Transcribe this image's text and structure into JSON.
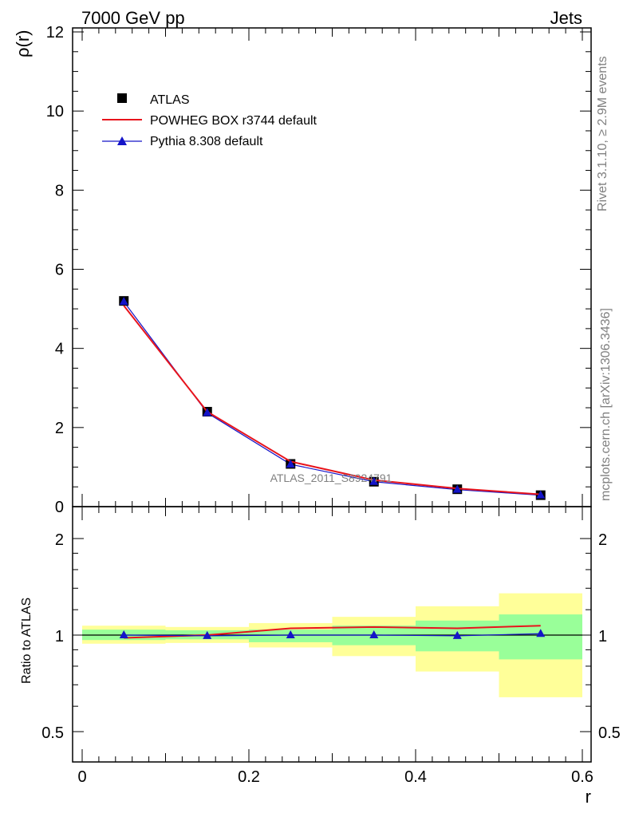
{
  "header": {
    "left": "7000 GeV pp",
    "right": "Jets"
  },
  "side_labels": {
    "rivet": "Rivet 3.1.10, ≥ 2.9M events",
    "mcplots": "mcplots.cern.ch [arXiv:1306.3436]"
  },
  "watermark": "ATLAS_2011_S8924791",
  "colors": {
    "atlas": "#000000",
    "powheg": "#e8141c",
    "pythia": "#1414c8",
    "band_green": "#99ff99",
    "band_yellow": "#ffff99"
  },
  "chart_data": [
    {
      "type": "line",
      "name": "main",
      "ylabel": "ρ(r)",
      "xlim": [
        0,
        0.6
      ],
      "ylim": [
        0,
        12
      ],
      "yticks": [
        "0",
        "2",
        "4",
        "6",
        "8",
        "10",
        "12"
      ],
      "legend": {
        "placement": "top-left",
        "entries": [
          "ATLAS",
          "POWHEG BOX r3744 default",
          "Pythia 8.308 default"
        ]
      },
      "series": [
        {
          "name": "ATLAS",
          "x": [
            0.05,
            0.15,
            0.25,
            0.35,
            0.45,
            0.55
          ],
          "y": [
            5.2,
            2.4,
            1.08,
            0.63,
            0.44,
            0.29
          ],
          "marker": "square"
        },
        {
          "name": "POWHEG BOX r3744 default",
          "x": [
            0.05,
            0.15,
            0.25,
            0.35,
            0.45,
            0.55
          ],
          "y": [
            5.08,
            2.4,
            1.14,
            0.67,
            0.46,
            0.31
          ],
          "marker": "none"
        },
        {
          "name": "Pythia 8.308 default",
          "x": [
            0.05,
            0.15,
            0.25,
            0.35,
            0.45,
            0.55
          ],
          "y": [
            5.18,
            2.37,
            1.07,
            0.63,
            0.43,
            0.29
          ],
          "marker": "triangle"
        }
      ]
    },
    {
      "type": "line",
      "name": "ratio",
      "xlabel": "r",
      "ylabel": "Ratio to ATLAS",
      "xlim": [
        0,
        0.6
      ],
      "ylim": [
        0.4,
        2.3
      ],
      "log_y": true,
      "xticks": [
        "0",
        "0.2",
        "0.4",
        "0.6"
      ],
      "yticks": [
        "0.5",
        "1",
        "2"
      ],
      "bands": [
        {
          "xlo": 0.0,
          "xhi": 0.1,
          "green": [
            0.965,
            1.04
          ],
          "yellow": [
            0.94,
            1.07
          ]
        },
        {
          "xlo": 0.1,
          "xhi": 0.2,
          "green": [
            0.97,
            1.035
          ],
          "yellow": [
            0.945,
            1.06
          ]
        },
        {
          "xlo": 0.2,
          "xhi": 0.3,
          "green": [
            0.95,
            1.04
          ],
          "yellow": [
            0.915,
            1.09
          ]
        },
        {
          "xlo": 0.3,
          "xhi": 0.4,
          "green": [
            0.93,
            1.07
          ],
          "yellow": [
            0.86,
            1.14
          ]
        },
        {
          "xlo": 0.4,
          "xhi": 0.5,
          "green": [
            0.89,
            1.11
          ],
          "yellow": [
            0.77,
            1.23
          ]
        },
        {
          "xlo": 0.5,
          "xhi": 0.6,
          "green": [
            0.84,
            1.16
          ],
          "yellow": [
            0.64,
            1.35
          ]
        }
      ],
      "series": [
        {
          "name": "POWHEG BOX r3744 default",
          "x": [
            0.05,
            0.15,
            0.25,
            0.35,
            0.45,
            0.55
          ],
          "y": [
            0.98,
            1.0,
            1.05,
            1.06,
            1.05,
            1.07
          ]
        },
        {
          "name": "Pythia 8.308 default",
          "x": [
            0.05,
            0.15,
            0.25,
            0.35,
            0.45,
            0.55
          ],
          "y": [
            1.0,
            0.995,
            1.0,
            1.0,
            0.995,
            1.01
          ]
        }
      ]
    }
  ]
}
